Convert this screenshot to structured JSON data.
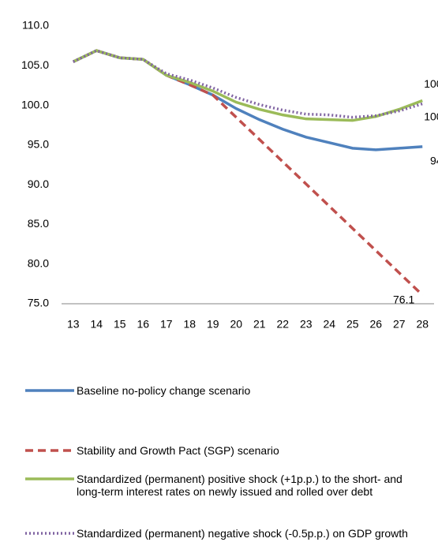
{
  "chart_data": {
    "type": "line",
    "categories": [
      "13",
      "14",
      "15",
      "16",
      "17",
      "18",
      "19",
      "20",
      "21",
      "22",
      "23",
      "24",
      "25",
      "26",
      "27",
      "28"
    ],
    "ylim": [
      75,
      110
    ],
    "yticks": [
      {
        "value": 75,
        "label": "75.0"
      },
      {
        "value": 80,
        "label": "80.0"
      },
      {
        "value": 85,
        "label": "85.0"
      },
      {
        "value": 90,
        "label": "90.0"
      },
      {
        "value": 95,
        "label": "95.0"
      },
      {
        "value": 100,
        "label": "100.0"
      },
      {
        "value": 105,
        "label": "105.0"
      },
      {
        "value": 110,
        "label": "110.0"
      }
    ],
    "series": [
      {
        "name": "Baseline no-policy change scenario",
        "color": "#4f81bd",
        "dash": "solid",
        "values": [
          105.5,
          106.9,
          106.0,
          105.8,
          103.8,
          102.6,
          101.3,
          99.6,
          98.2,
          97.0,
          96.0,
          95.3,
          94.6,
          94.4,
          94.6,
          94.8
        ]
      },
      {
        "name": "Stability and Growth Pact (SGP) scenario",
        "color": "#c0504d",
        "dash": "dashed",
        "values": [
          105.5,
          106.9,
          106.0,
          105.8,
          103.8,
          102.6,
          101.3,
          98.5,
          95.7,
          92.9,
          90.1,
          87.3,
          84.5,
          81.7,
          78.9,
          76.1
        ]
      },
      {
        "name": "Standardized (permanent) positive shock (+1p.p.) to the short- and long-term interest rates on newly issued and rolled over debt",
        "color": "#9bbb59",
        "dash": "solid",
        "values": [
          105.5,
          106.9,
          106.0,
          105.8,
          103.8,
          102.9,
          101.8,
          100.4,
          99.5,
          98.8,
          98.3,
          98.2,
          98.1,
          98.6,
          99.5,
          100.6
        ]
      },
      {
        "name": "Standardized (permanent) negative shock (-0.5p.p.) on GDP growth",
        "color": "#8064a2",
        "dash": "dotted",
        "values": [
          105.5,
          106.9,
          106.0,
          105.8,
          104.0,
          103.2,
          102.2,
          101.0,
          100.1,
          99.4,
          98.9,
          98.8,
          98.5,
          98.7,
          99.3,
          100.2
        ]
      }
    ]
  }
}
